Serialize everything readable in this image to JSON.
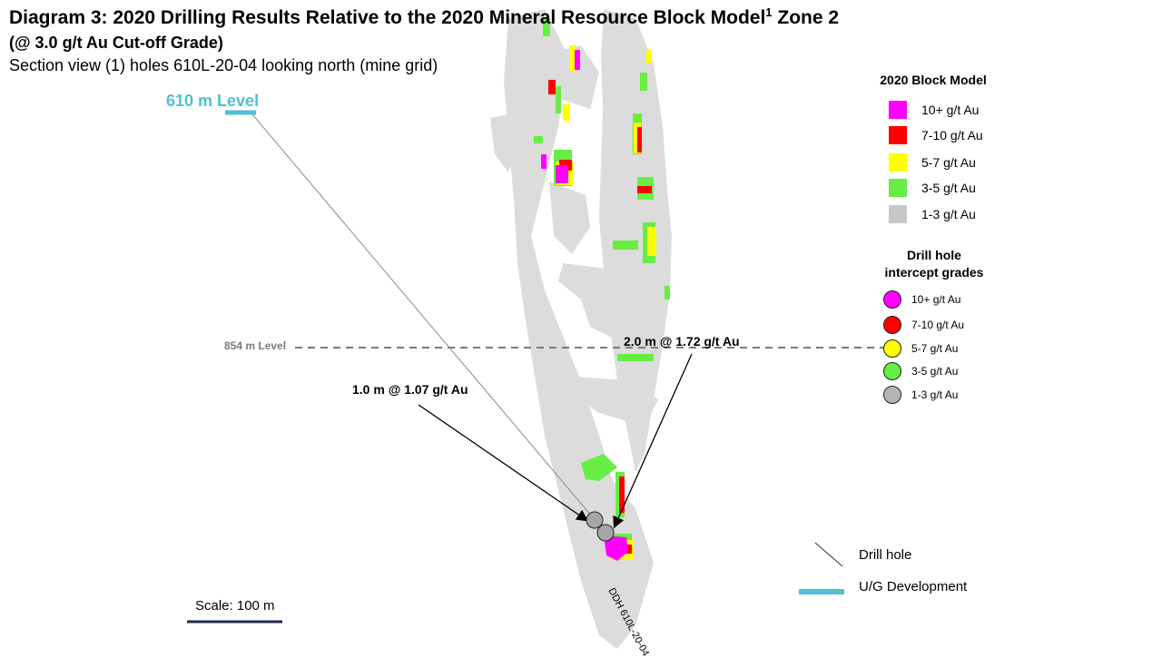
{
  "title": {
    "main": "Diagram 3: 2020 Drilling Results Relative to the 2020 Mineral Resource Block Model",
    "superscript": "1",
    "zone": " Zone 2",
    "subtitle": "(@ 3.0 g/t Au Cut-off Grade)",
    "section_view": "Section view (1) holes 610L-20-04 looking north (mine grid)"
  },
  "levels": {
    "level_610": "610 m Level",
    "level_854": "854 m Level"
  },
  "annotations": {
    "intercept_1": "1.0 m @ 1.07 g/t Au",
    "intercept_2": "2.0 m @ 1.72 g/t Au",
    "drill_hole_label": "DDH 610L-20-04"
  },
  "scale": {
    "label": "Scale: 100 m"
  },
  "block_model_legend": {
    "title": "2020 Block Model",
    "items": [
      {
        "label": "10+ g/t Au",
        "color": "#ff00ff"
      },
      {
        "label": "7-10 g/t Au",
        "color": "#ff0000"
      },
      {
        "label": "5-7 g/t Au",
        "color": "#ffff00"
      },
      {
        "label": "3-5 g/t Au",
        "color": "#66ee44"
      },
      {
        "label": "1-3 g/t Au",
        "color": "#c8c8c8"
      }
    ]
  },
  "intercept_legend": {
    "title_line1": "Drill hole",
    "title_line2": "intercept grades",
    "items": [
      {
        "label": "10+ g/t Au",
        "color": "#ff00ff"
      },
      {
        "label": "7-10 g/t Au",
        "color": "#ff0000"
      },
      {
        "label": "5-7 g/t Au",
        "color": "#ffff00"
      },
      {
        "label": "3-5 g/t Au",
        "color": "#66ee44"
      },
      {
        "label": "1-3 g/t Au",
        "color": "#b4b4b4"
      }
    ]
  },
  "symbol_legend": {
    "drill_hole": "Drill hole",
    "ug_development": "U/G Development"
  },
  "colors": {
    "ug_development": "#4dc1d6",
    "rock_grey": "#d9d9d9",
    "intercept_grey": "#a6a6a6"
  }
}
